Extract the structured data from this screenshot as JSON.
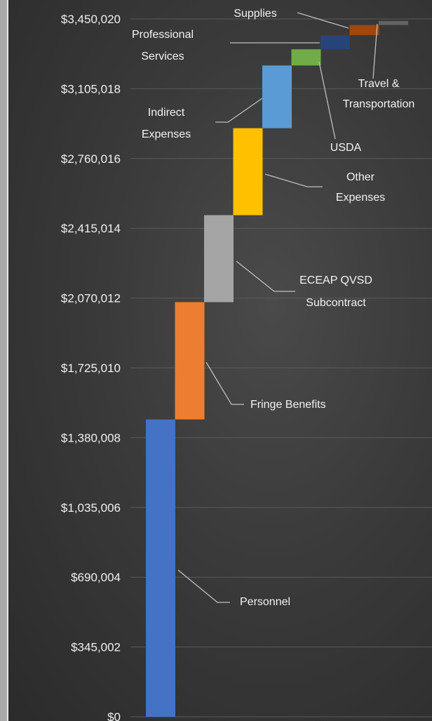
{
  "chart_data": {
    "type": "waterfall",
    "title": "",
    "xlabel": "",
    "ylabel": "",
    "ylim": [
      0,
      3450020
    ],
    "grid": true,
    "yticks": [
      "$0",
      "$345,002",
      "$690,004",
      "$1,035,006",
      "$1,380,008",
      "$1,725,010",
      "$2,070,012",
      "$2,415,014",
      "$2,760,016",
      "$3,105,018",
      "$3,450,020"
    ],
    "categories": [
      "Personnel",
      "Fringe Benefits",
      "ECEAP QVSD Subcontract",
      "Other Expenses",
      "Indirect Expenses",
      "USDA",
      "Professional Services",
      "Supplies",
      "Travel & Transportation"
    ],
    "labels": [
      [
        "Personnel"
      ],
      [
        "Fringe Benefits"
      ],
      [
        "ECEAP QVSD",
        "Subcontract"
      ],
      [
        "Other",
        "Expenses"
      ],
      [
        "Indirect",
        "Expenses"
      ],
      [
        "USDA"
      ],
      [
        "Professional",
        "Services"
      ],
      [
        "Supplies"
      ],
      [
        "Travel &",
        "Transportation"
      ]
    ],
    "values": [
      1470000,
      580000,
      430000,
      430000,
      310000,
      80000,
      70000,
      50000,
      20000
    ],
    "colors": [
      "#4472c4",
      "#ed7d31",
      "#a5a5a5",
      "#ffc000",
      "#5b9bd5",
      "#70ad47",
      "#264478",
      "#9e480e",
      "#636363"
    ]
  }
}
